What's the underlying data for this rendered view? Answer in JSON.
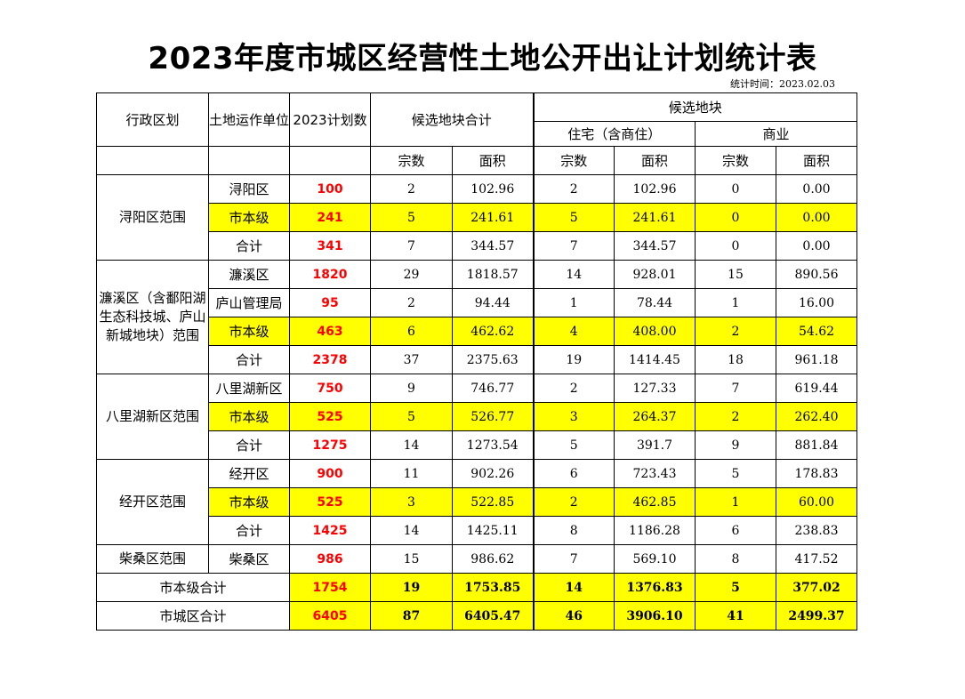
{
  "title": "2023年度市城区经营性土地公开出让计划统计表",
  "stat_time": "统计时间：2023.02.03",
  "colors": {
    "highlight": "#ffff00",
    "plan_text": "#ff0000"
  },
  "headers": {
    "region": "行政区划",
    "unit": "土地运作单位",
    "plan": "2023计划数",
    "candidate_total": "候选地块合计",
    "candidate": "候选地块",
    "residential": "住宅（含商住）",
    "commercial": "商业",
    "count": "宗数",
    "area": "面积"
  },
  "groups": [
    {
      "region": "浔阳区范围",
      "rows": [
        {
          "unit": "浔阳区",
          "plan": "100",
          "tc": "2",
          "ta": "102.96",
          "rc": "2",
          "ra": "102.96",
          "cc": "0",
          "ca": "0.00",
          "hl": false
        },
        {
          "unit": "市本级",
          "plan": "241",
          "tc": "5",
          "ta": "241.61",
          "rc": "5",
          "ra": "241.61",
          "cc": "0",
          "ca": "0.00",
          "hl": true
        },
        {
          "unit": "合计",
          "plan": "341",
          "tc": "7",
          "ta": "344.57",
          "rc": "7",
          "ra": "344.57",
          "cc": "0",
          "ca": "0.00",
          "hl": false
        }
      ]
    },
    {
      "region": "濂溪区（含鄱阳湖生态科技城、庐山新城地块）范围",
      "rows": [
        {
          "unit": "濂溪区",
          "plan": "1820",
          "tc": "29",
          "ta": "1818.57",
          "rc": "14",
          "ra": "928.01",
          "cc": "15",
          "ca": "890.56",
          "hl": false
        },
        {
          "unit": "庐山管理局",
          "plan": "95",
          "tc": "2",
          "ta": "94.44",
          "rc": "1",
          "ra": "78.44",
          "cc": "1",
          "ca": "16.00",
          "hl": false
        },
        {
          "unit": "市本级",
          "plan": "463",
          "tc": "6",
          "ta": "462.62",
          "rc": "4",
          "ra": "408.00",
          "cc": "2",
          "ca": "54.62",
          "hl": true
        },
        {
          "unit": "合计",
          "plan": "2378",
          "tc": "37",
          "ta": "2375.63",
          "rc": "19",
          "ra": "1414.45",
          "cc": "18",
          "ca": "961.18",
          "hl": false
        }
      ]
    },
    {
      "region": "八里湖新区范围",
      "rows": [
        {
          "unit": "八里湖新区",
          "plan": "750",
          "tc": "9",
          "ta": "746.77",
          "rc": "2",
          "ra": "127.33",
          "cc": "7",
          "ca": "619.44",
          "hl": false
        },
        {
          "unit": "市本级",
          "plan": "525",
          "tc": "5",
          "ta": "526.77",
          "rc": "3",
          "ra": "264.37",
          "cc": "2",
          "ca": "262.40",
          "hl": true
        },
        {
          "unit": "合计",
          "plan": "1275",
          "tc": "14",
          "ta": "1273.54",
          "rc": "5",
          "ra": "391.7",
          "cc": "9",
          "ca": "881.84",
          "hl": false
        }
      ]
    },
    {
      "region": "经开区范围",
      "rows": [
        {
          "unit": "经开区",
          "plan": "900",
          "tc": "11",
          "ta": "902.26",
          "rc": "6",
          "ra": "723.43",
          "cc": "5",
          "ca": "178.83",
          "hl": false
        },
        {
          "unit": "市本级",
          "plan": "525",
          "tc": "3",
          "ta": "522.85",
          "rc": "2",
          "ra": "462.85",
          "cc": "1",
          "ca": "60.00",
          "hl": true
        },
        {
          "unit": "合计",
          "plan": "1425",
          "tc": "14",
          "ta": "1425.11",
          "rc": "8",
          "ra": "1186.28",
          "cc": "6",
          "ca": "238.83",
          "hl": false
        }
      ]
    },
    {
      "region": "柴桑区范围",
      "rows": [
        {
          "unit": "柴桑区",
          "plan": "986",
          "tc": "15",
          "ta": "986.62",
          "rc": "7",
          "ra": "569.10",
          "cc": "8",
          "ca": "417.52",
          "hl": false
        }
      ]
    }
  ],
  "totals": [
    {
      "label": "市本级合计",
      "plan": "1754",
      "tc": "19",
      "ta": "1753.85",
      "rc": "14",
      "ra": "1376.83",
      "cc": "5",
      "ca": "377.02"
    },
    {
      "label": "市城区合计",
      "plan": "6405",
      "tc": "87",
      "ta": "6405.47",
      "rc": "46",
      "ra": "3906.10",
      "cc": "41",
      "ca": "2499.37"
    }
  ]
}
